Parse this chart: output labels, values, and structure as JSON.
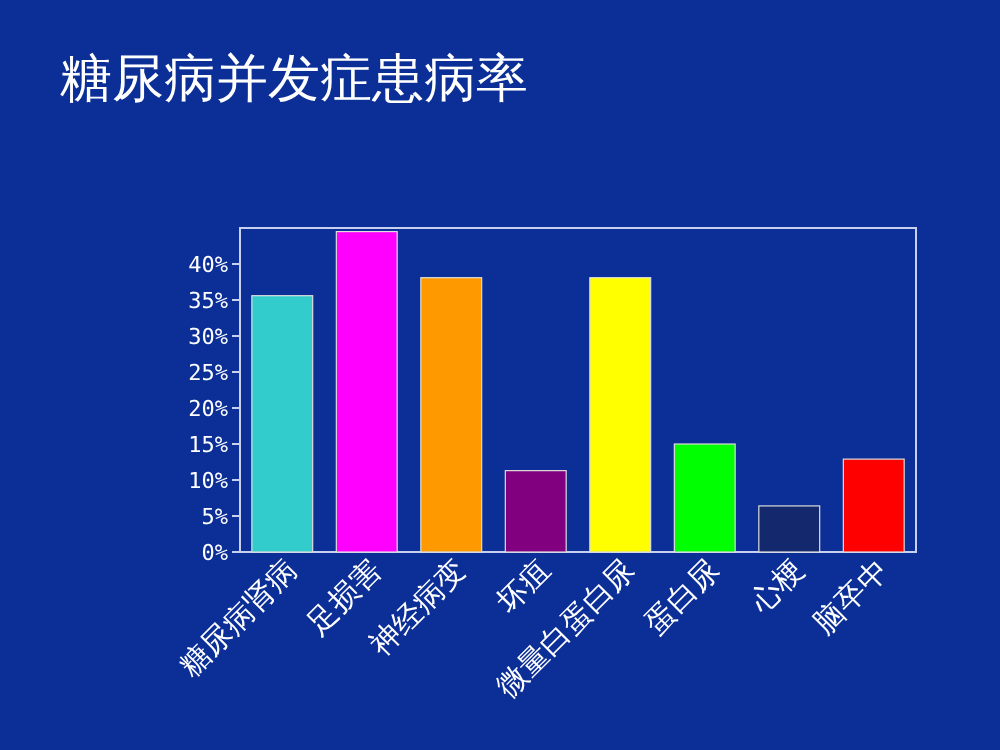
{
  "chart_data": {
    "type": "bar",
    "title": "糖尿病并发症患病率",
    "categories": [
      "糖尿病肾病",
      "足损害",
      "神经病变",
      "坏疽",
      "微量白蛋白尿",
      "蛋白尿",
      "心梗",
      "脑卒中"
    ],
    "values": [
      35.6,
      44.5,
      38.1,
      11.3,
      38.1,
      15,
      6.4,
      12.9
    ],
    "colors": [
      "#33cccc",
      "#ff00ff",
      "#ff9900",
      "#800080",
      "#ffff00",
      "#00ff00",
      "#14286e",
      "#ff0000"
    ],
    "ylim": [
      0,
      45
    ],
    "yticks": [
      {
        "value": 0,
        "label": "0%"
      },
      {
        "value": 5,
        "label": "5%"
      },
      {
        "value": 10,
        "label": "10%"
      },
      {
        "value": 15,
        "label": "15%"
      },
      {
        "value": 20,
        "label": "20%"
      },
      {
        "value": 25,
        "label": "25%"
      },
      {
        "value": 30,
        "label": "30%"
      },
      {
        "value": 35,
        "label": "35%"
      },
      {
        "value": 40,
        "label": "40%"
      }
    ],
    "grid": false,
    "legend": false
  }
}
